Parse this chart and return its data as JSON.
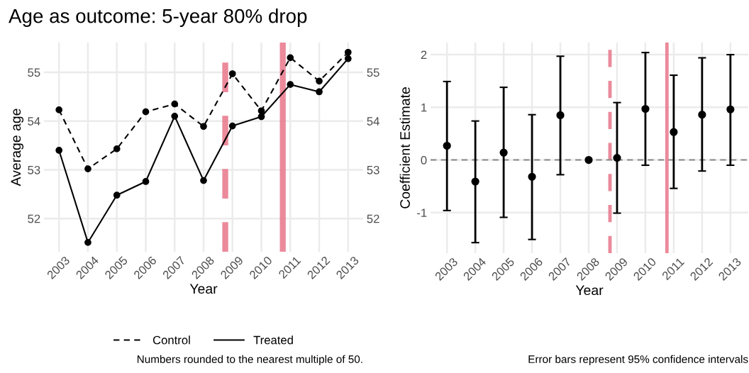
{
  "chart_data": [
    {
      "type": "line",
      "title": "Age as outcome: 5-year 80% drop",
      "xlabel": "Year",
      "ylabel": "Average age",
      "x": [
        2003,
        2004,
        2005,
        2006,
        2007,
        2008,
        2009,
        2010,
        2011,
        2012,
        2013
      ],
      "series": [
        {
          "name": "Control",
          "color": "#000000",
          "line_style": "dashed",
          "values": [
            54.23,
            53.02,
            53.43,
            54.19,
            54.35,
            53.89,
            54.97,
            54.21,
            55.3,
            54.82,
            55.41
          ]
        },
        {
          "name": "Treated",
          "color": "#000000",
          "line_style": "solid",
          "values": [
            53.4,
            51.51,
            52.48,
            52.76,
            54.1,
            52.78,
            53.9,
            54.09,
            54.75,
            54.6,
            55.28
          ]
        }
      ],
      "marker": "circle",
      "xlim": [
        2002.48,
        2013.52
      ],
      "xticks": [
        2003,
        2004,
        2005,
        2006,
        2007,
        2008,
        2009,
        2010,
        2011,
        2012,
        2013
      ],
      "ylim": [
        51.32,
        55.61
      ],
      "yticks": [
        52,
        53,
        54,
        55
      ],
      "y2lim": [
        51.32,
        55.61
      ],
      "y2ticks": [
        52,
        53,
        54,
        55
      ],
      "ref_lines": [
        {
          "axis": "x",
          "value": 2008.75,
          "color": "#e8768a",
          "line_style": "dashed"
        },
        {
          "axis": "x",
          "value": 2010.74,
          "color": "#e8768a",
          "line_style": "solid"
        }
      ],
      "grid": true,
      "legend": "bottom",
      "annotations": [
        "Numbers rounded to the nearest multiple of 50."
      ]
    },
    {
      "type": "scatter",
      "xlabel": "Year",
      "ylabel": "Coefficient Estimate",
      "x": [
        2003,
        2004,
        2005,
        2006,
        2007,
        2008,
        2009,
        2010,
        2011,
        2012,
        2013
      ],
      "series": [
        {
          "color": "#000000",
          "values": [
            0.27,
            -0.41,
            0.14,
            -0.32,
            0.85,
            0,
            0.04,
            0.97,
            0.53,
            0.86,
            0.96
          ],
          "errors": [
            [
              -0.96,
              1.49
            ],
            [
              -1.57,
              0.74
            ],
            [
              -1.09,
              1.38
            ],
            [
              -1.51,
              0.86
            ],
            [
              -0.28,
              1.97
            ],
            null,
            [
              -1.01,
              1.09
            ],
            [
              -0.1,
              2.04
            ],
            [
              -0.54,
              1.61
            ],
            [
              -0.21,
              1.94
            ],
            [
              -0.1,
              2.0
            ]
          ]
        }
      ],
      "marker": "circle",
      "xlim": [
        2002.42,
        2013.63
      ],
      "xticks": [
        2003,
        2004,
        2005,
        2006,
        2007,
        2008,
        2009,
        2010,
        2011,
        2012,
        2013
      ],
      "ylim": [
        -1.77,
        2.23
      ],
      "yticks": [
        -1,
        0,
        1,
        2
      ],
      "ref_lines": [
        {
          "axis": "x",
          "value": 2008.75,
          "color": "#e8768a",
          "line_style": "dashed"
        },
        {
          "axis": "x",
          "value": 2010.76,
          "color": "#e8768a",
          "line_style": "solid"
        },
        {
          "axis": "y",
          "value": 0,
          "color": "#888888",
          "line_style": "dashed"
        }
      ],
      "grid": true,
      "annotations": [
        "Error bars represent 95% confidence intervals"
      ]
    }
  ]
}
